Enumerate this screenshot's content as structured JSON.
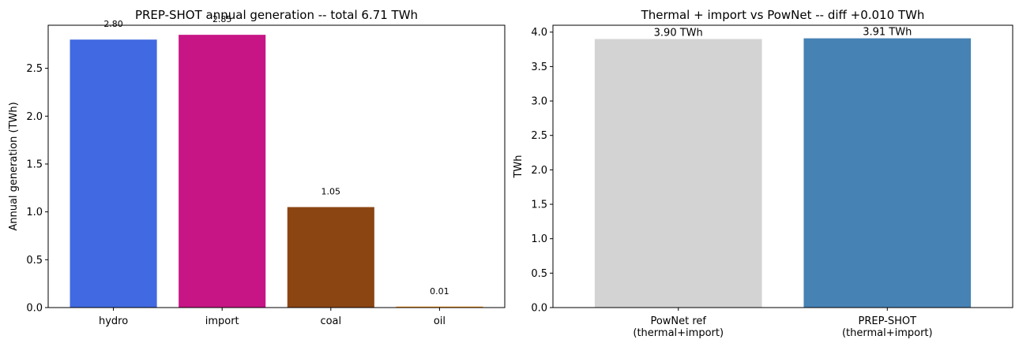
{
  "chart_data": [
    {
      "type": "bar",
      "title": "PREP-SHOT annual generation -- total 6.71 TWh",
      "xlabel": "",
      "ylabel": "Annual generation (TWh)",
      "categories": [
        "hydro",
        "import",
        "coal",
        "oil"
      ],
      "values": [
        2.8,
        2.85,
        1.05,
        0.01
      ],
      "value_labels": [
        "2.80",
        "2.85",
        "1.05",
        "0.01"
      ],
      "colors": [
        "#4169E1",
        "#C71585",
        "#8B4513",
        "#FF8C00"
      ],
      "ylim": [
        0,
        2.95
      ],
      "yticks": [
        0.0,
        0.5,
        1.0,
        1.5,
        2.0,
        2.5
      ],
      "ytick_labels": [
        "0.0",
        "0.5",
        "1.0",
        "1.5",
        "2.0",
        "2.5"
      ],
      "grid": false
    },
    {
      "type": "bar",
      "title": "Thermal + import vs PowNet -- diff +0.010 TWh",
      "xlabel": "",
      "ylabel": "TWh",
      "categories": [
        [
          "PowNet ref",
          "(thermal+import)"
        ],
        [
          "PREP-SHOT",
          "(thermal+import)"
        ]
      ],
      "values": [
        3.9,
        3.91
      ],
      "value_labels": [
        "3.90 TWh",
        "3.91 TWh"
      ],
      "colors": [
        "#D3D3D3",
        "#4682B4"
      ],
      "ylim": [
        0,
        4.1
      ],
      "yticks": [
        0.0,
        0.5,
        1.0,
        1.5,
        2.0,
        2.5,
        3.0,
        3.5,
        4.0
      ],
      "ytick_labels": [
        "0.0",
        "0.5",
        "1.0",
        "1.5",
        "2.0",
        "2.5",
        "3.0",
        "3.5",
        "4.0"
      ],
      "grid": false
    }
  ]
}
